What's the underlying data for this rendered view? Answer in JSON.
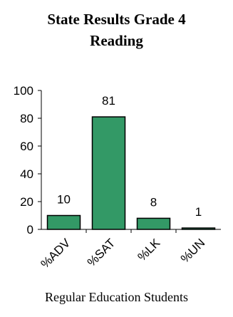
{
  "chart_data": {
    "type": "bar",
    "title_line1": "State Results Grade 4",
    "title_line2": "Reading",
    "xlabel": "Regular Education Students",
    "ylabel": "",
    "categories": [
      "%ADV",
      "%SAT",
      "%LK",
      "%UN"
    ],
    "values": [
      10,
      81,
      8,
      1
    ],
    "data_labels": [
      "10",
      "81",
      "8",
      "1"
    ],
    "ylim": [
      0,
      100
    ],
    "yticks": [
      0,
      20,
      40,
      60,
      80,
      100
    ],
    "bar_color": "#339966",
    "grid": false,
    "legend": "none"
  }
}
